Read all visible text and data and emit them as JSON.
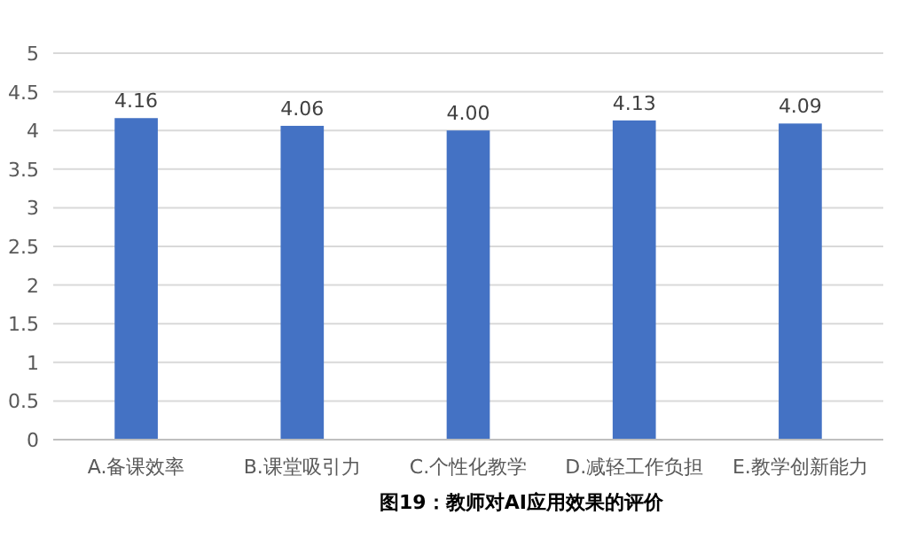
{
  "chart_data": {
    "type": "bar",
    "title": "图19：教师对AI应用效果的评价",
    "categories": [
      "A.备课效率",
      "B.课堂吸引力",
      "C.个性化教学",
      "D.减轻工作负担",
      "E.教学创新能力"
    ],
    "values": [
      4.16,
      4.06,
      4.0,
      4.13,
      4.09
    ],
    "value_labels": [
      "4.16",
      "4.06",
      "4.00",
      "4.13",
      "4.09"
    ],
    "color": "#4472c4",
    "ylim": [
      0,
      5
    ],
    "yticks": [
      0,
      0.5,
      1,
      1.5,
      2,
      2.5,
      3,
      3.5,
      4,
      4.5,
      5
    ],
    "grid": "y"
  }
}
